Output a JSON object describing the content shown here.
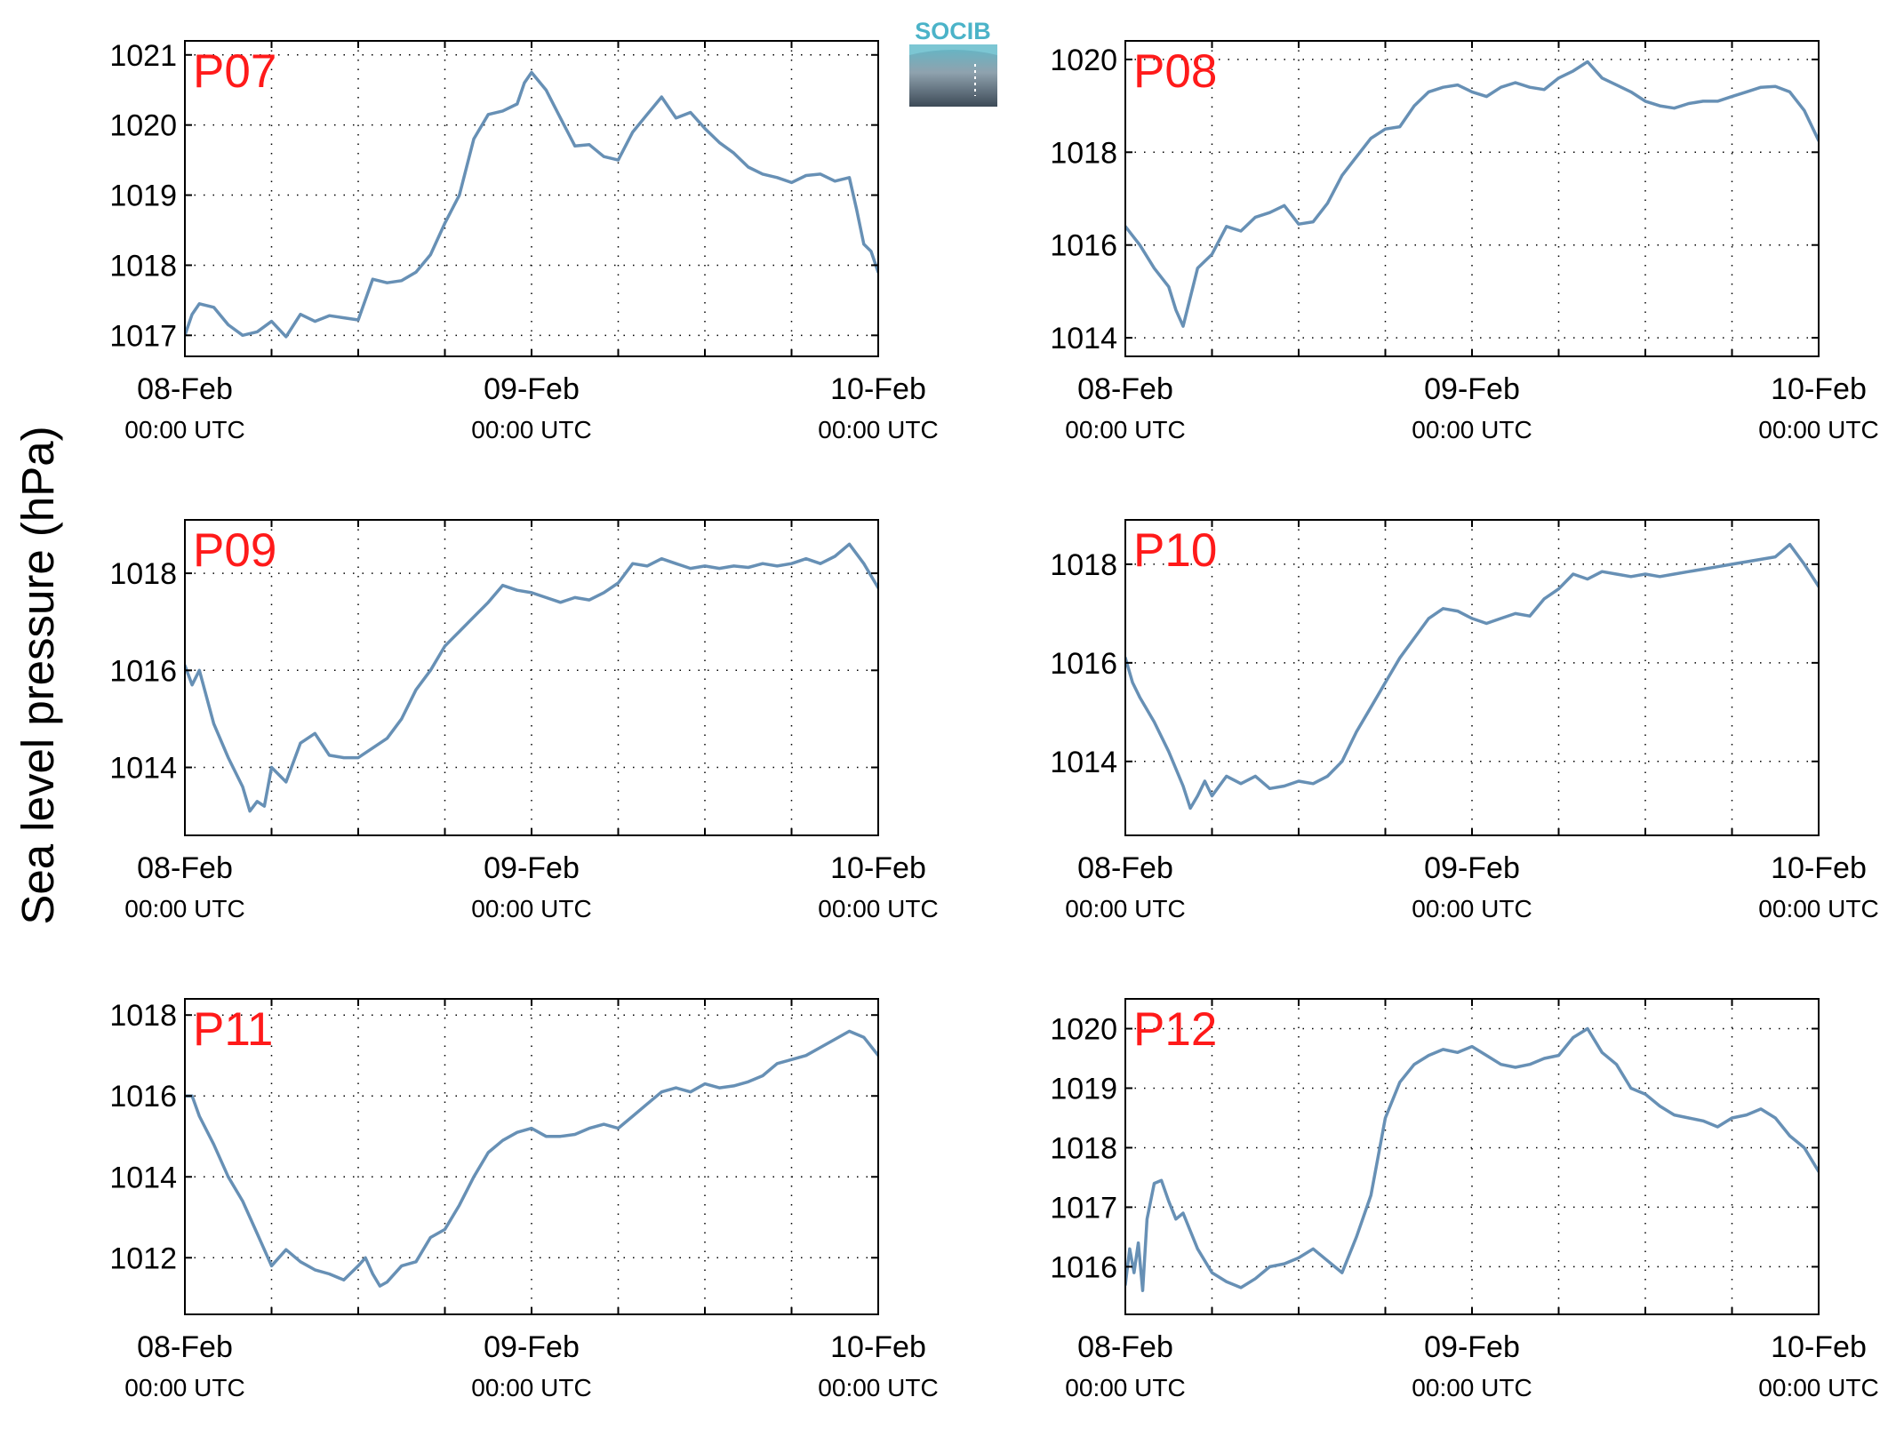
{
  "figure": {
    "ylabel": "Sea level pressure (hPa)",
    "logo_text": "SOCIB",
    "line_color": "#6790b5",
    "station_label_color": "#ff1a1a"
  },
  "chart_data": [
    {
      "type": "line",
      "station": "P07",
      "x_ticks": [
        {
          "date": "08-Feb",
          "time": "00:00 UTC",
          "t": 0
        },
        {
          "date": "09-Feb",
          "time": "00:00 UTC",
          "t": 24
        },
        {
          "date": "10-Feb",
          "time": "00:00 UTC",
          "t": 48
        }
      ],
      "xlim": [
        0,
        48
      ],
      "ylim": [
        1016.7,
        1021.2
      ],
      "y_ticks": [
        1017,
        1018,
        1019,
        1020,
        1021
      ],
      "grid": true,
      "x_hours": [
        0,
        0.5,
        1,
        2,
        3,
        4,
        5,
        6,
        7,
        8,
        9,
        10,
        11,
        12,
        13,
        14,
        15,
        16,
        17,
        18,
        19,
        20,
        21,
        22,
        23,
        23.5,
        24,
        25,
        26,
        27,
        28,
        29,
        30,
        31,
        32,
        33,
        34,
        35,
        36,
        37,
        38,
        39,
        40,
        41,
        42,
        43,
        44,
        45,
        46,
        46.5,
        47,
        47.5,
        48
      ],
      "values": [
        1017.0,
        1017.3,
        1017.45,
        1017.4,
        1017.15,
        1017.0,
        1017.05,
        1017.2,
        1016.98,
        1017.3,
        1017.2,
        1017.28,
        1017.25,
        1017.22,
        1017.8,
        1017.75,
        1017.78,
        1017.9,
        1018.15,
        1018.6,
        1019.0,
        1019.8,
        1020.15,
        1020.2,
        1020.3,
        1020.6,
        1020.75,
        1020.5,
        1020.1,
        1019.7,
        1019.72,
        1019.55,
        1019.5,
        1019.9,
        1020.15,
        1020.4,
        1020.1,
        1020.18,
        1019.95,
        1019.75,
        1019.6,
        1019.4,
        1019.3,
        1019.25,
        1019.18,
        1019.28,
        1019.3,
        1019.2,
        1019.25,
        1018.8,
        1018.3,
        1018.2,
        1017.9
      ]
    },
    {
      "type": "line",
      "station": "P08",
      "x_ticks": [
        {
          "date": "08-Feb",
          "time": "00:00 UTC",
          "t": 0
        },
        {
          "date": "09-Feb",
          "time": "00:00 UTC",
          "t": 24
        },
        {
          "date": "10-Feb",
          "time": "00:00 UTC",
          "t": 48
        }
      ],
      "xlim": [
        0,
        48
      ],
      "ylim": [
        1013.6,
        1020.4
      ],
      "y_ticks": [
        1014,
        1016,
        1018,
        1020
      ],
      "grid": true,
      "x_hours": [
        0,
        1,
        2,
        3,
        3.5,
        4,
        5,
        6,
        7,
        8,
        9,
        10,
        11,
        12,
        13,
        14,
        15,
        16,
        17,
        18,
        19,
        20,
        21,
        22,
        23,
        24,
        25,
        26,
        27,
        28,
        29,
        30,
        31,
        32,
        33,
        34,
        35,
        36,
        37,
        38,
        39,
        40,
        41,
        42,
        43,
        44,
        45,
        46,
        47,
        48
      ],
      "values": [
        1016.4,
        1016.0,
        1015.5,
        1015.1,
        1014.6,
        1014.25,
        1015.5,
        1015.8,
        1016.4,
        1016.3,
        1016.6,
        1016.7,
        1016.85,
        1016.45,
        1016.5,
        1016.9,
        1017.5,
        1017.9,
        1018.3,
        1018.5,
        1018.55,
        1019.0,
        1019.3,
        1019.4,
        1019.45,
        1019.3,
        1019.2,
        1019.4,
        1019.5,
        1019.4,
        1019.35,
        1019.6,
        1019.75,
        1019.95,
        1019.6,
        1019.45,
        1019.3,
        1019.1,
        1019.0,
        1018.95,
        1019.05,
        1019.1,
        1019.1,
        1019.2,
        1019.3,
        1019.4,
        1019.42,
        1019.3,
        1018.9,
        1018.25
      ]
    },
    {
      "type": "line",
      "station": "P09",
      "x_ticks": [
        {
          "date": "08-Feb",
          "time": "00:00 UTC",
          "t": 0
        },
        {
          "date": "09-Feb",
          "time": "00:00 UTC",
          "t": 24
        },
        {
          "date": "10-Feb",
          "time": "00:00 UTC",
          "t": 48
        }
      ],
      "xlim": [
        0,
        48
      ],
      "ylim": [
        1012.6,
        1019.1
      ],
      "y_ticks": [
        1014,
        1016,
        1018
      ],
      "grid": true,
      "x_hours": [
        0,
        0.5,
        1,
        2,
        3,
        4,
        4.5,
        5,
        5.5,
        6,
        7,
        8,
        9,
        10,
        11,
        12,
        13,
        14,
        15,
        16,
        17,
        18,
        19,
        20,
        21,
        22,
        23,
        24,
        25,
        26,
        27,
        28,
        29,
        30,
        31,
        32,
        33,
        34,
        35,
        36,
        37,
        38,
        39,
        40,
        41,
        42,
        43,
        44,
        45,
        46,
        47,
        48
      ],
      "values": [
        1016.1,
        1015.7,
        1016.0,
        1014.9,
        1014.2,
        1013.6,
        1013.1,
        1013.3,
        1013.2,
        1014.0,
        1013.7,
        1014.5,
        1014.7,
        1014.25,
        1014.2,
        1014.2,
        1014.4,
        1014.6,
        1015.0,
        1015.6,
        1016.0,
        1016.5,
        1016.8,
        1017.1,
        1017.4,
        1017.75,
        1017.65,
        1017.6,
        1017.5,
        1017.4,
        1017.5,
        1017.45,
        1017.6,
        1017.8,
        1018.2,
        1018.15,
        1018.3,
        1018.2,
        1018.1,
        1018.15,
        1018.1,
        1018.15,
        1018.12,
        1018.2,
        1018.15,
        1018.2,
        1018.3,
        1018.2,
        1018.35,
        1018.6,
        1018.2,
        1017.7
      ]
    },
    {
      "type": "line",
      "station": "P10",
      "x_ticks": [
        {
          "date": "08-Feb",
          "time": "00:00 UTC",
          "t": 0
        },
        {
          "date": "09-Feb",
          "time": "00:00 UTC",
          "t": 24
        },
        {
          "date": "10-Feb",
          "time": "00:00 UTC",
          "t": 48
        }
      ],
      "xlim": [
        0,
        48
      ],
      "ylim": [
        1012.5,
        1018.9
      ],
      "y_ticks": [
        1014,
        1016,
        1018
      ],
      "grid": true,
      "x_hours": [
        0,
        0.5,
        1,
        2,
        3,
        4,
        4.5,
        5,
        5.5,
        6,
        7,
        8,
        9,
        10,
        11,
        12,
        13,
        14,
        15,
        16,
        17,
        18,
        19,
        20,
        21,
        22,
        23,
        24,
        25,
        26,
        27,
        28,
        29,
        30,
        31,
        32,
        33,
        34,
        35,
        36,
        37,
        38,
        39,
        40,
        41,
        42,
        43,
        44,
        45,
        46,
        47,
        48
      ],
      "values": [
        1016.1,
        1015.6,
        1015.3,
        1014.8,
        1014.2,
        1013.5,
        1013.05,
        1013.3,
        1013.6,
        1013.3,
        1013.7,
        1013.55,
        1013.7,
        1013.45,
        1013.5,
        1013.6,
        1013.55,
        1013.7,
        1014.0,
        1014.6,
        1015.1,
        1015.6,
        1016.1,
        1016.5,
        1016.9,
        1017.1,
        1017.05,
        1016.9,
        1016.8,
        1016.9,
        1017.0,
        1016.95,
        1017.3,
        1017.5,
        1017.8,
        1017.7,
        1017.85,
        1017.8,
        1017.75,
        1017.8,
        1017.75,
        1017.8,
        1017.85,
        1017.9,
        1017.95,
        1018.0,
        1018.05,
        1018.1,
        1018.15,
        1018.4,
        1018.0,
        1017.55
      ]
    },
    {
      "type": "line",
      "station": "P11",
      "x_ticks": [
        {
          "date": "08-Feb",
          "time": "00:00 UTC",
          "t": 0
        },
        {
          "date": "09-Feb",
          "time": "00:00 UTC",
          "t": 24
        },
        {
          "date": "10-Feb",
          "time": "00:00 UTC",
          "t": 48
        }
      ],
      "xlim": [
        0,
        48
      ],
      "ylim": [
        1010.6,
        1018.4
      ],
      "y_ticks": [
        1012,
        1014,
        1016,
        1018
      ],
      "grid": true,
      "x_hours": [
        0,
        0.5,
        1,
        2,
        3,
        4,
        5,
        6,
        7,
        8,
        9,
        10,
        11,
        12,
        12.5,
        13,
        13.5,
        14,
        15,
        16,
        17,
        18,
        19,
        20,
        21,
        22,
        23,
        24,
        25,
        26,
        27,
        28,
        29,
        30,
        31,
        32,
        33,
        34,
        35,
        36,
        37,
        38,
        39,
        40,
        41,
        42,
        43,
        44,
        45,
        46,
        47,
        48
      ],
      "values": [
        1016.0,
        1016.0,
        1015.5,
        1014.8,
        1014.0,
        1013.4,
        1012.6,
        1011.8,
        1012.2,
        1011.9,
        1011.7,
        1011.6,
        1011.45,
        1011.8,
        1012.0,
        1011.6,
        1011.3,
        1011.4,
        1011.8,
        1011.9,
        1012.5,
        1012.7,
        1013.3,
        1014.0,
        1014.6,
        1014.9,
        1015.1,
        1015.2,
        1015.0,
        1015.0,
        1015.05,
        1015.2,
        1015.3,
        1015.2,
        1015.5,
        1015.8,
        1016.1,
        1016.2,
        1016.1,
        1016.3,
        1016.2,
        1016.25,
        1016.35,
        1016.5,
        1016.8,
        1016.9,
        1017.0,
        1017.2,
        1017.4,
        1017.6,
        1017.45,
        1017.0
      ]
    },
    {
      "type": "line",
      "station": "P12",
      "x_ticks": [
        {
          "date": "08-Feb",
          "time": "00:00 UTC",
          "t": 0
        },
        {
          "date": "09-Feb",
          "time": "00:00 UTC",
          "t": 24
        },
        {
          "date": "10-Feb",
          "time": "00:00 UTC",
          "t": 48
        }
      ],
      "xlim": [
        0,
        48
      ],
      "ylim": [
        1015.2,
        1020.5
      ],
      "y_ticks": [
        1016,
        1017,
        1018,
        1019,
        1020
      ],
      "grid": true,
      "x_hours": [
        0,
        0.3,
        0.6,
        0.9,
        1.2,
        1.5,
        2,
        2.5,
        3,
        3.5,
        4,
        5,
        6,
        7,
        8,
        9,
        10,
        11,
        12,
        13,
        14,
        15,
        16,
        17,
        18,
        19,
        20,
        21,
        22,
        23,
        24,
        25,
        26,
        27,
        28,
        29,
        30,
        31,
        32,
        33,
        34,
        35,
        36,
        37,
        38,
        39,
        40,
        41,
        42,
        43,
        44,
        45,
        46,
        47,
        48
      ],
      "values": [
        1015.7,
        1016.3,
        1015.9,
        1016.4,
        1015.6,
        1016.8,
        1017.4,
        1017.45,
        1017.1,
        1016.8,
        1016.9,
        1016.3,
        1015.9,
        1015.75,
        1015.65,
        1015.8,
        1016.0,
        1016.05,
        1016.15,
        1016.3,
        1016.1,
        1015.9,
        1016.5,
        1017.2,
        1018.5,
        1019.1,
        1019.4,
        1019.55,
        1019.65,
        1019.6,
        1019.7,
        1019.55,
        1019.4,
        1019.35,
        1019.4,
        1019.5,
        1019.55,
        1019.85,
        1020.0,
        1019.6,
        1019.4,
        1019.0,
        1018.9,
        1018.7,
        1018.55,
        1018.5,
        1018.45,
        1018.35,
        1018.5,
        1018.55,
        1018.65,
        1018.5,
        1018.2,
        1018.0,
        1017.6
      ]
    }
  ]
}
